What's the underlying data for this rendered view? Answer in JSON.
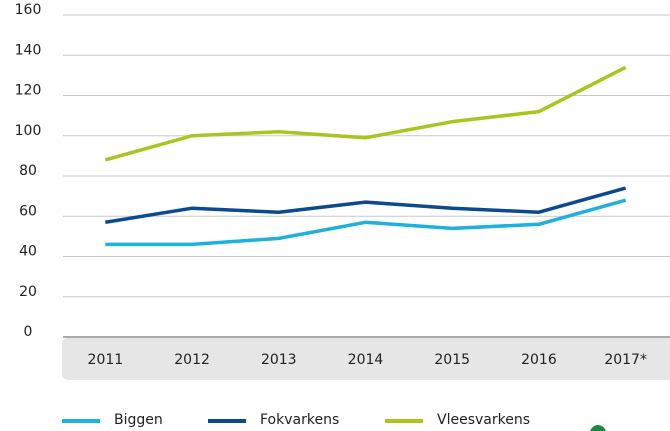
{
  "chart_data": {
    "type": "line",
    "categories": [
      "2011",
      "2012",
      "2013",
      "2014",
      "2015",
      "2016",
      "2017*"
    ],
    "series": [
      {
        "name": "Biggen",
        "color": "#1fb0dc",
        "values": [
          46,
          46,
          49,
          57,
          54,
          56,
          68
        ]
      },
      {
        "name": "Fokvarkens",
        "color": "#0b4a8e",
        "values": [
          57,
          64,
          62,
          67,
          64,
          62,
          74
        ]
      },
      {
        "name": "Vleesvarkens",
        "color": "#a9c61f",
        "values": [
          88,
          100,
          102,
          99,
          107,
          112,
          134
        ]
      }
    ],
    "ylim": [
      0,
      160
    ],
    "yticks": [
      0,
      20,
      40,
      60,
      80,
      100,
      120,
      140,
      160
    ],
    "grid": true,
    "legend": "bottom"
  }
}
